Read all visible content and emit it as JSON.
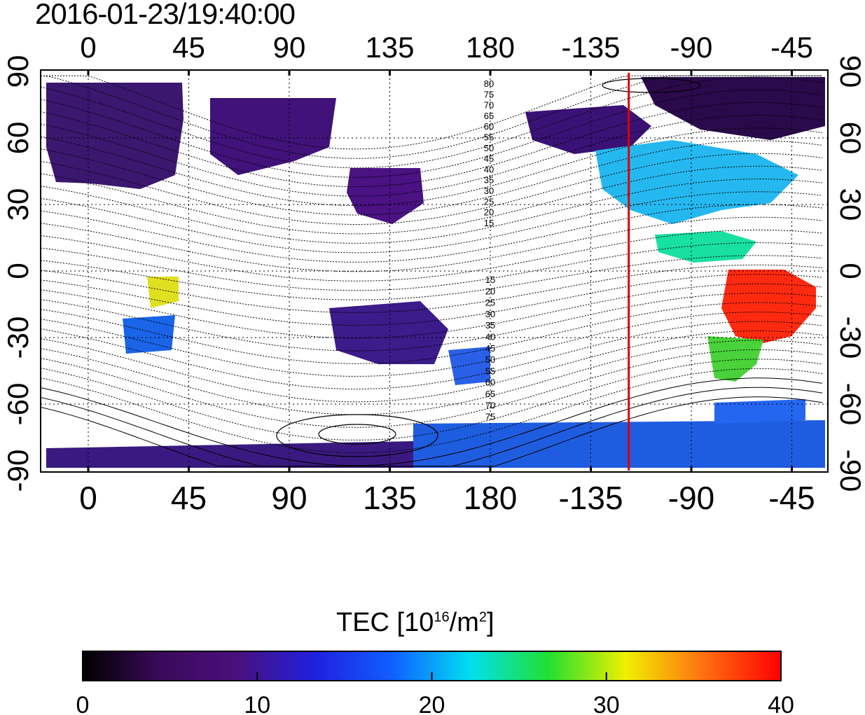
{
  "title": "2016-01-23/19:40:00",
  "map": {
    "lon_ticks_top": [
      "0",
      "45",
      "90",
      "135",
      "180",
      "-135",
      "-90",
      "-45"
    ],
    "lon_ticks_bottom": [
      "0",
      "45",
      "90",
      "135",
      "180",
      "-135",
      "-90",
      "-45"
    ],
    "lat_ticks_left": [
      "90",
      "60",
      "30",
      "0",
      "-30",
      "-60",
      "-90"
    ],
    "lat_ticks_right": [
      "90",
      "60",
      "30",
      "0",
      "-30",
      "-60",
      "-90"
    ],
    "contour_labels_north": [
      "80",
      "75",
      "70",
      "65",
      "60",
      "55",
      "50",
      "45",
      "40",
      "35",
      "30",
      "25",
      "20",
      "15"
    ],
    "contour_labels_south": [
      "15",
      "20",
      "25",
      "30",
      "35",
      "40",
      "45",
      "50",
      "55",
      "60",
      "65",
      "70",
      "75"
    ],
    "terminator_color": "#e00000",
    "terminator_longitude": -118
  },
  "colorbar": {
    "title_prefix": "TEC  [10",
    "title_exp1": "16",
    "title_mid": "/m",
    "title_exp2": "2",
    "title_suffix": "]",
    "ticks": [
      "0",
      "10",
      "20",
      "30",
      "40"
    ],
    "min": 0,
    "max": 40,
    "colors": [
      "#000000",
      "#3a0a5a",
      "#4a107e",
      "#2020e0",
      "#1060ff",
      "#00e0f0",
      "#20e030",
      "#f0f000",
      "#ff7010",
      "#ff0000"
    ]
  }
}
